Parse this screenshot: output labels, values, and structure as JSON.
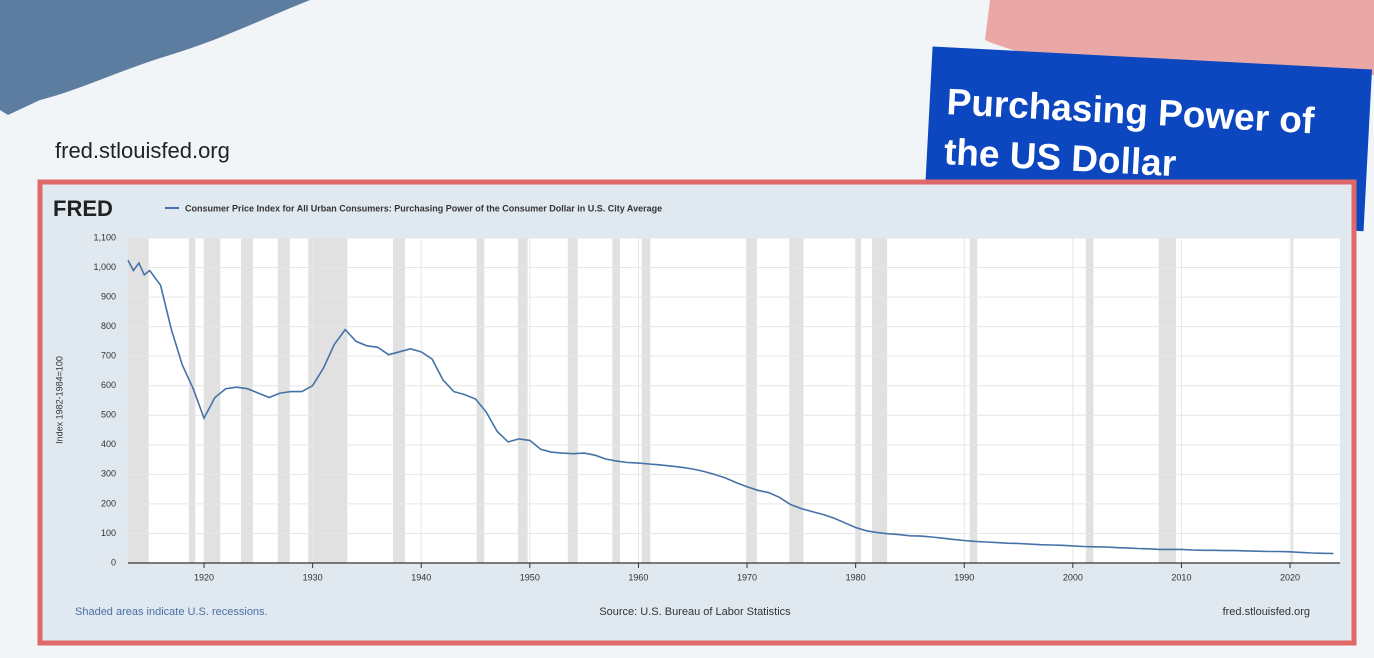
{
  "site": "fred.stlouisfed.org",
  "banner": [
    "Purchasing Power of",
    "the US Dollar"
  ],
  "chart_data": {
    "type": "line",
    "logo": "FRED",
    "y_label": "Index 1982-1984=100",
    "xlim": [
      1913,
      2024.6
    ],
    "ylim": [
      0,
      1100
    ],
    "xticks": [
      1920,
      1930,
      1940,
      1950,
      1960,
      1970,
      1980,
      1990,
      2000,
      2010,
      2020
    ],
    "yticks": [
      0,
      100,
      200,
      300,
      400,
      500,
      600,
      700,
      800,
      900,
      {
        "value": 1000,
        "label": "1,000"
      },
      {
        "value": 1100,
        "label": "1,100"
      }
    ],
    "grid": true,
    "recessions": [
      [
        1913.0,
        1914.9
      ],
      [
        1918.6,
        1919.2
      ],
      [
        1920.0,
        1921.5
      ],
      [
        1923.4,
        1924.5
      ],
      [
        1926.8,
        1927.9
      ],
      [
        1929.6,
        1933.2
      ],
      [
        1937.4,
        1938.5
      ],
      [
        1945.1,
        1945.8
      ],
      [
        1948.9,
        1949.8
      ],
      [
        1953.5,
        1954.4
      ],
      [
        1957.6,
        1958.3
      ],
      [
        1960.3,
        1961.1
      ],
      [
        1969.9,
        1970.9
      ],
      [
        1973.9,
        1975.2
      ],
      [
        1980.0,
        1980.5
      ],
      [
        1981.5,
        1982.9
      ],
      [
        1990.5,
        1991.2
      ],
      [
        2001.2,
        2001.9
      ],
      [
        2007.9,
        2009.5
      ],
      [
        2020.1,
        2020.3
      ]
    ],
    "x": [
      1913,
      1913.5,
      1914,
      1914.5,
      1915,
      1916,
      1917,
      1918,
      1919,
      1920,
      1921,
      1922,
      1923,
      1924,
      1925,
      1926,
      1927,
      1928,
      1929,
      1930,
      1931,
      1932,
      1933,
      1934,
      1935,
      1936,
      1937,
      1938,
      1939,
      1940,
      1941,
      1942,
      1943,
      1944,
      1945,
      1946,
      1947,
      1948,
      1949,
      1950,
      1951,
      1952,
      1953,
      1954,
      1955,
      1956,
      1957,
      1958,
      1959,
      1960,
      1961,
      1962,
      1963,
      1964,
      1965,
      1966,
      1967,
      1968,
      1969,
      1970,
      1971,
      1972,
      1973,
      1974,
      1975,
      1976,
      1977,
      1978,
      1979,
      1980,
      1981,
      1982,
      1983,
      1984,
      1985,
      1986,
      1987,
      1988,
      1989,
      1990,
      1991,
      1992,
      1993,
      1994,
      1995,
      1996,
      1997,
      1998,
      1999,
      2000,
      2001,
      2002,
      2003,
      2004,
      2005,
      2006,
      2007,
      2008,
      2009,
      2010,
      2011,
      2012,
      2013,
      2014,
      2015,
      2016,
      2017,
      2018,
      2019,
      2020,
      2021,
      2022,
      2023,
      2024
    ],
    "series": [
      {
        "name": "Consumer Price Index for All Urban Consumers: Purchasing Power of the Consumer Dollar in U.S. City Average",
        "color": "#4572a7",
        "values": [
          1025,
          990,
          1015,
          975,
          990,
          940,
          790,
          670,
          590,
          490,
          560,
          590,
          595,
          590,
          575,
          560,
          575,
          580,
          580,
          600,
          660,
          740,
          790,
          750,
          735,
          730,
          705,
          715,
          725,
          715,
          690,
          620,
          580,
          570,
          555,
          510,
          445,
          410,
          420,
          415,
          385,
          375,
          372,
          370,
          372,
          365,
          352,
          345,
          340,
          338,
          335,
          332,
          328,
          324,
          318,
          310,
          300,
          288,
          272,
          258,
          246,
          238,
          222,
          198,
          184,
          174,
          164,
          152,
          136,
          120,
          109,
          103,
          99,
          96,
          92,
          91,
          88,
          84,
          80,
          76,
          73,
          71,
          69,
          67,
          66,
          64,
          62,
          61,
          60,
          58,
          56,
          55,
          54,
          52,
          51,
          49,
          48,
          46,
          46,
          46,
          44,
          43,
          43,
          42,
          42,
          41,
          40,
          39,
          39,
          38,
          36,
          34,
          33,
          32
        ]
      }
    ],
    "note": "Shaded areas indicate U.S. recessions.",
    "source": "Source: U.S. Bureau of Labor Statistics",
    "credit": "fred.stlouisfed.org"
  }
}
